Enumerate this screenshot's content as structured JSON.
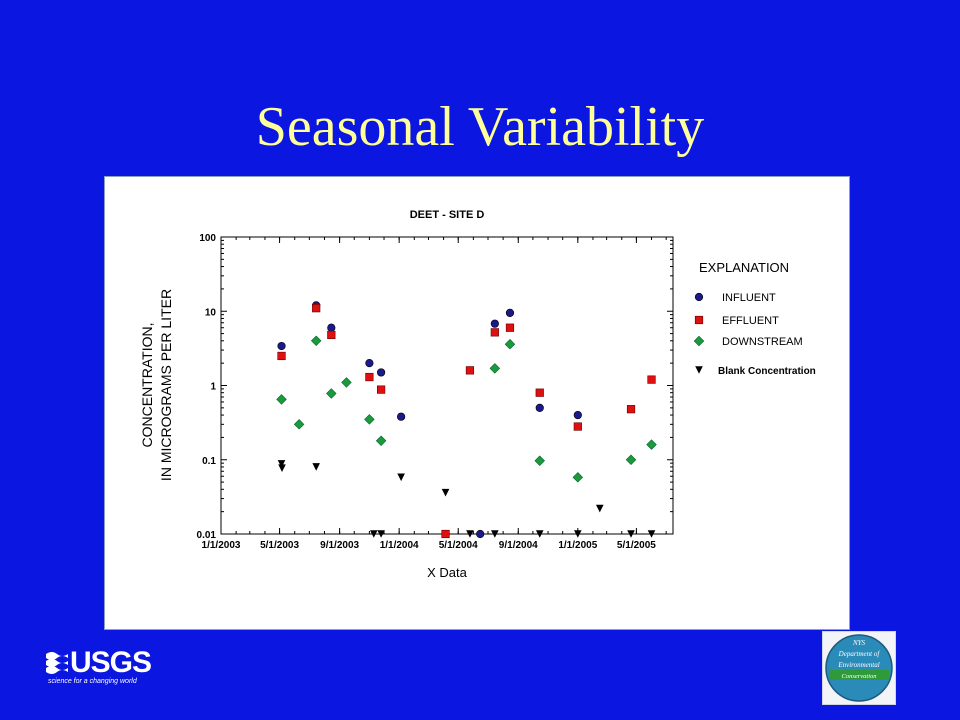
{
  "slide": {
    "title": "Seasonal Variability"
  },
  "logos": {
    "usgs": {
      "name": "USGS",
      "tagline": "science for a changing world"
    },
    "nysdec": {
      "top": "NYS",
      "line1": "Department of",
      "line2": "Environmental",
      "line3": "Conservation"
    }
  },
  "colors": {
    "background": "#0b16e0",
    "title": "#ffff99",
    "influent": "#1a1a8c",
    "effluent": "#e01010",
    "downstream": "#1a9a3a",
    "blank": "#000000"
  },
  "chart_data": {
    "type": "scatter",
    "title": "DEET - SITE D",
    "xlabel": "X Data",
    "ylabel": [
      "CONCENTRATION,",
      "IN MICROGRAMS PER LITER"
    ],
    "yscale": "log",
    "ylim": [
      0.01,
      100
    ],
    "yticks": [
      "0.01",
      "0.1",
      "1",
      "10",
      "100"
    ],
    "xlim": [
      "2003-01-01",
      "2005-07-15"
    ],
    "xticks": [
      "1/1/2003",
      "5/1/2003",
      "9/1/2003",
      "1/1/2004",
      "5/1/2004",
      "9/1/2004",
      "1/1/2005",
      "5/1/2005"
    ],
    "legend_title": "EXPLANATION",
    "legend_position": "right",
    "series": [
      {
        "name": "INFLUENT",
        "marker": "circle",
        "color": "#1a1a8c",
        "points": [
          [
            "2003-05-05",
            3.4
          ],
          [
            "2003-07-15",
            12
          ],
          [
            "2003-08-15",
            6
          ],
          [
            "2003-11-01",
            2
          ],
          [
            "2003-11-25",
            1.5
          ],
          [
            "2004-01-05",
            0.38
          ],
          [
            "2004-06-15",
            0.01
          ],
          [
            "2004-07-15",
            6.8
          ],
          [
            "2004-08-15",
            9.5
          ],
          [
            "2004-10-15",
            0.5
          ],
          [
            "2005-01-01",
            0.4
          ]
        ]
      },
      {
        "name": "EFFLUENT",
        "marker": "square",
        "color": "#e01010",
        "points": [
          [
            "2003-05-05",
            2.5
          ],
          [
            "2003-07-15",
            11
          ],
          [
            "2003-08-15",
            4.8
          ],
          [
            "2003-11-01",
            1.3
          ],
          [
            "2003-11-25",
            0.88
          ],
          [
            "2004-04-05",
            0.01
          ],
          [
            "2004-05-25",
            1.6
          ],
          [
            "2004-07-15",
            5.2
          ],
          [
            "2004-08-15",
            6
          ],
          [
            "2004-10-15",
            0.8
          ],
          [
            "2005-01-01",
            0.28
          ],
          [
            "2005-04-20",
            0.48
          ],
          [
            "2005-06-01",
            1.2
          ]
        ]
      },
      {
        "name": "DOWNSTREAM",
        "marker": "diamond",
        "color": "#1a9a3a",
        "points": [
          [
            "2003-05-05",
            0.65
          ],
          [
            "2003-06-10",
            0.3
          ],
          [
            "2003-07-15",
            4
          ],
          [
            "2003-08-15",
            0.78
          ],
          [
            "2003-09-15",
            1.1
          ],
          [
            "2003-11-01",
            0.35
          ],
          [
            "2003-11-25",
            0.18
          ],
          [
            "2004-07-15",
            1.7
          ],
          [
            "2004-08-15",
            3.6
          ],
          [
            "2004-10-15",
            0.097
          ],
          [
            "2005-01-01",
            0.058
          ],
          [
            "2005-04-20",
            0.1
          ],
          [
            "2005-06-01",
            0.16
          ]
        ]
      },
      {
        "name": "Blank Concentration",
        "marker": "triangle-down",
        "color": "#000000",
        "points": [
          [
            "2003-05-05",
            0.088
          ],
          [
            "2003-05-06",
            0.077
          ],
          [
            "2003-07-15",
            0.08
          ],
          [
            "2003-11-10",
            0.01
          ],
          [
            "2003-11-25",
            0.01
          ],
          [
            "2004-01-05",
            0.058
          ],
          [
            "2004-04-05",
            0.036
          ],
          [
            "2004-05-25",
            0.01
          ],
          [
            "2004-07-15",
            0.01
          ],
          [
            "2004-10-15",
            0.01
          ],
          [
            "2005-01-01",
            0.01
          ],
          [
            "2005-02-15",
            0.022
          ],
          [
            "2005-04-20",
            0.01
          ],
          [
            "2005-06-01",
            0.01
          ]
        ]
      }
    ]
  }
}
